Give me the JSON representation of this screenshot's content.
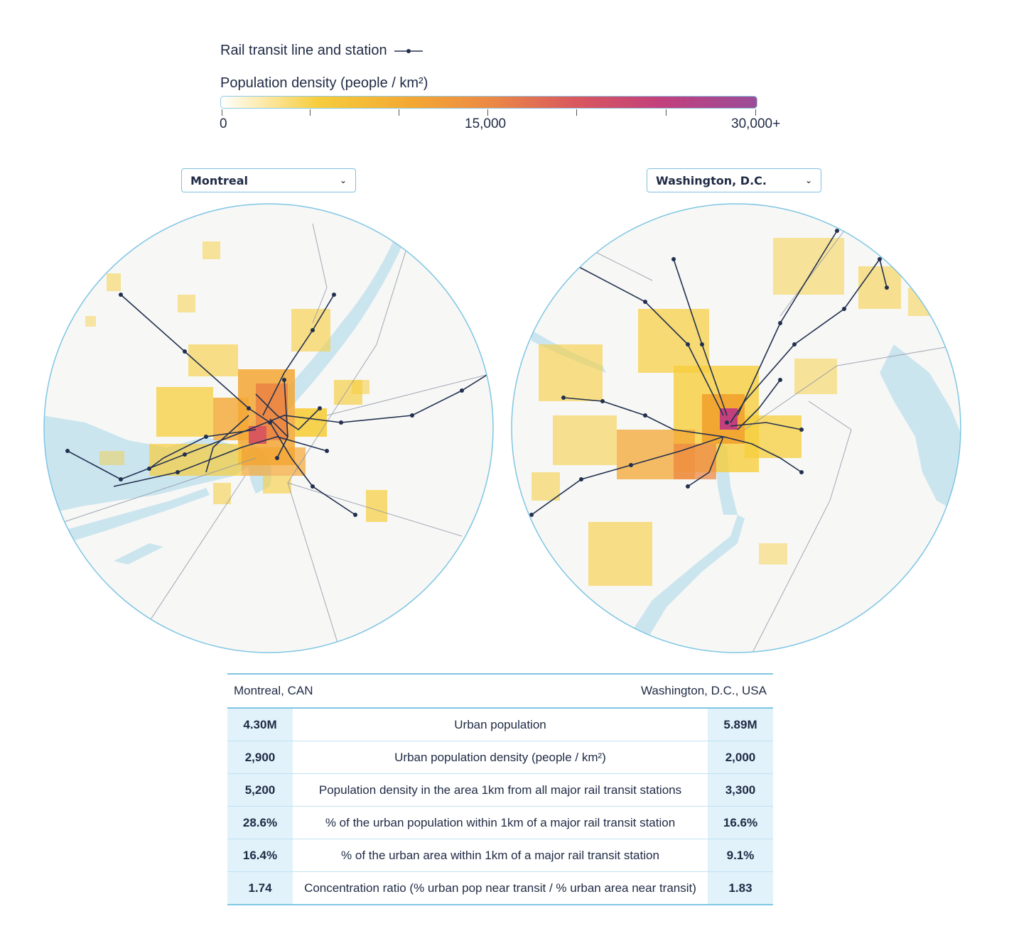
{
  "legend": {
    "rail_label": "Rail transit line and station",
    "density_title": "Population density (people / km²)",
    "ticks": [
      "0",
      "15,000",
      "30,000+"
    ]
  },
  "colors": {
    "rail": "#22304f",
    "water": "#cbe5ef",
    "land": "#f7f7f5",
    "border": "#7fc6e4",
    "density_low": "#f6cd3c",
    "density_mid": "#ec8a45",
    "density_high": "#c2407c"
  },
  "maps": [
    {
      "city": "Montreal"
    },
    {
      "city": "Washington, D.C."
    }
  ],
  "stats": {
    "left_city": "Montreal, CAN",
    "right_city": "Washington, D.C., USA",
    "rows": [
      {
        "left": "4.30M",
        "label": "Urban population",
        "right": "5.89M"
      },
      {
        "left": "2,900",
        "label": "Urban population density (people / km²)",
        "right": "2,000"
      },
      {
        "left": "5,200",
        "label": "Population density in the area 1km from all major rail transit stations",
        "right": "3,300"
      },
      {
        "left": "28.6%",
        "label": "% of the urban population within 1km of a major rail transit station",
        "right": "16.6%"
      },
      {
        "left": "16.4%",
        "label": "% of the urban area within 1km of a major rail transit station",
        "right": "9.1%"
      },
      {
        "left": "1.74",
        "label": "Concentration ratio (% urban pop near transit / % urban area near transit)",
        "right": "1.83"
      }
    ]
  }
}
